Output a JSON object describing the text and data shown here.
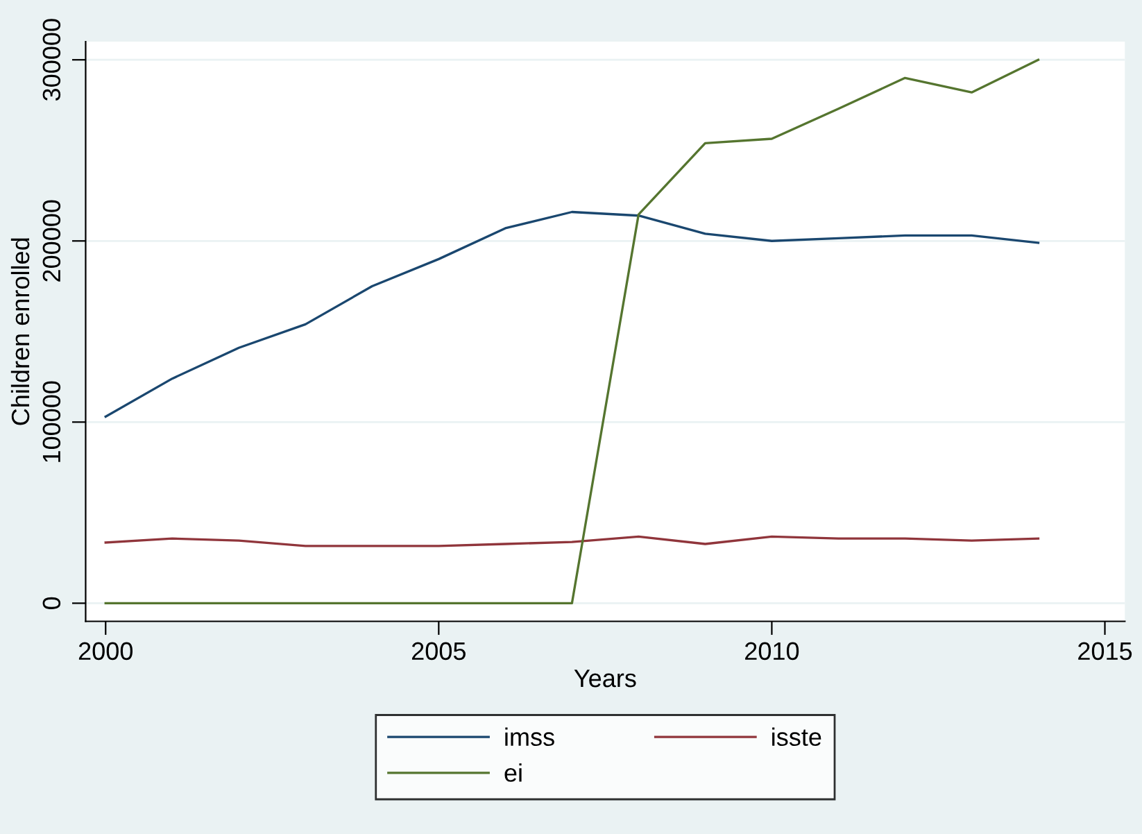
{
  "chart_data": {
    "type": "line",
    "xlabel": "Years",
    "ylabel": "Children enrolled",
    "x": [
      2000,
      2001,
      2002,
      2003,
      2004,
      2005,
      2006,
      2007,
      2008,
      2009,
      2010,
      2011,
      2012,
      2013,
      2014
    ],
    "series": [
      {
        "name": "imss",
        "color": "#1a476f",
        "values": [
          103000,
          124000,
          141000,
          154000,
          175000,
          190000,
          207000,
          216000,
          214000,
          204000,
          200000,
          201500,
          203000,
          203000,
          199000
        ]
      },
      {
        "name": "isste",
        "color": "#90353b",
        "values": [
          33500,
          35700,
          34600,
          31600,
          31600,
          31600,
          32700,
          33800,
          36800,
          32700,
          36800,
          35700,
          35700,
          34600,
          35700
        ]
      },
      {
        "name": "ei",
        "color": "#55752f",
        "values": [
          0,
          0,
          0,
          0,
          0,
          0,
          0,
          0,
          214600,
          254000,
          256400,
          273000,
          290000,
          282000,
          300000
        ]
      }
    ],
    "xlim": [
      1999.7,
      2015.3
    ],
    "ylim": [
      -10000,
      310000
    ],
    "xticks": [
      2000,
      2005,
      2010,
      2015
    ],
    "yticks": [
      0,
      100000,
      200000,
      300000
    ],
    "grid": "y",
    "legend": "bottom",
    "marker": "none",
    "line_style": "solid"
  }
}
